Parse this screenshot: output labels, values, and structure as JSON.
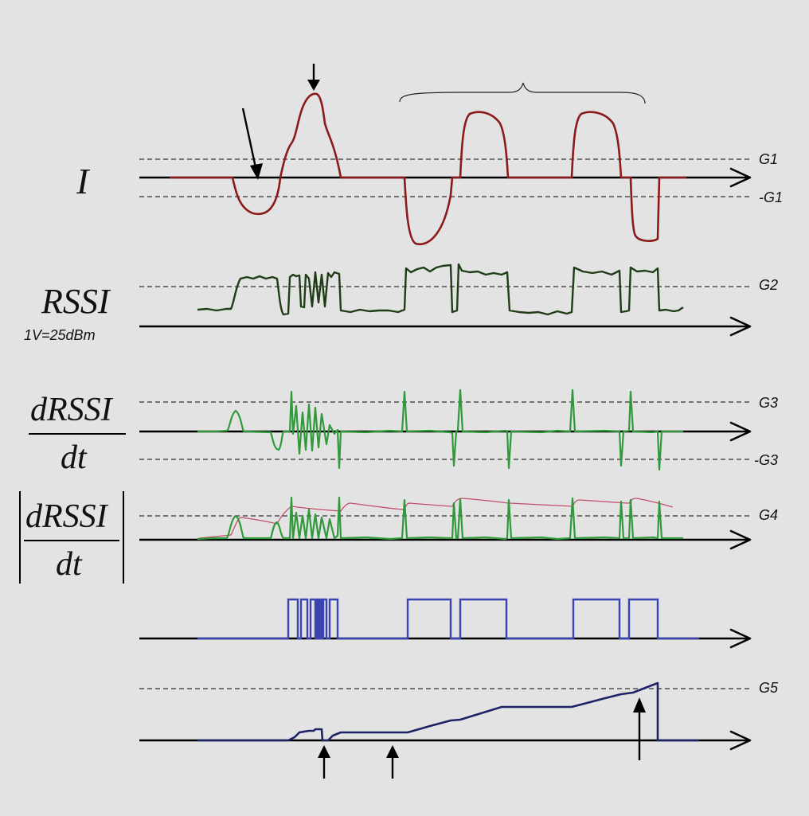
{
  "labels": {
    "current": "I",
    "rssi": "RSSI",
    "rssi_scale": "1V=25dBm",
    "drssi_num": "dRSSI",
    "drssi_den": "dt",
    "abs_num": "dRSSI",
    "abs_den": "dt"
  },
  "thresholds": {
    "g1_pos": "G1",
    "g1_neg": "-G1",
    "g2": "G2",
    "g3_pos": "G3",
    "g3_neg": "-G3",
    "g4": "G4",
    "g5": "G5"
  },
  "colors": {
    "current": "#8b1a1a",
    "rssi": "#1f3d17",
    "derivative": "#2e9a3a",
    "envelope": "#c0506a",
    "detector": "#3b43b0",
    "integrator": "#1d2466"
  }
}
